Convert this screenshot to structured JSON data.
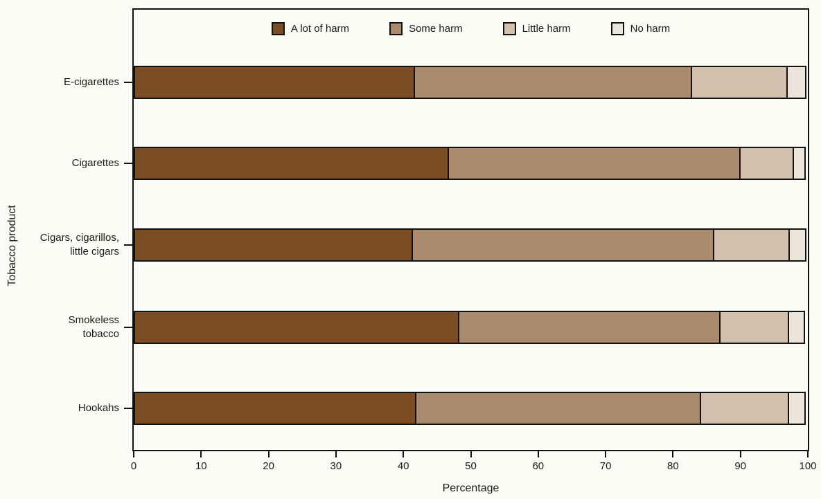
{
  "chart_data": {
    "type": "bar",
    "orientation": "horizontal",
    "stacked": true,
    "title": "",
    "xlabel": "Percentage",
    "ylabel": "Tobacco product",
    "xlim": [
      0,
      100
    ],
    "xticks": [
      0,
      10,
      20,
      30,
      40,
      50,
      60,
      70,
      80,
      90,
      100
    ],
    "grid": false,
    "legend_position": "top-inside",
    "categories": [
      "E-cigarettes",
      "Cigarettes",
      "Cigars, cigarillos,\nlittle cigars",
      "Smokeless\ntobacco",
      "Hookahs"
    ],
    "series": [
      {
        "name": "A lot of harm",
        "color": "#7C4C22",
        "values": [
          41.7,
          46.8,
          41.4,
          48.4,
          42.0
        ]
      },
      {
        "name": "Some harm",
        "color": "#AA8A6D",
        "values": [
          41.4,
          43.5,
          45.0,
          38.9,
          42.4
        ]
      },
      {
        "name": "Little harm",
        "color": "#D2BFAC",
        "values": [
          14.1,
          7.8,
          11.1,
          10.1,
          13.0
        ]
      },
      {
        "name": "No harm",
        "color": "#ECE5DB",
        "values": [
          2.6,
          1.6,
          2.3,
          2.2,
          2.3
        ]
      }
    ]
  },
  "colors": {
    "frame": "#111111",
    "background": "#FBFDF4",
    "text": "#1a1a1a"
  }
}
